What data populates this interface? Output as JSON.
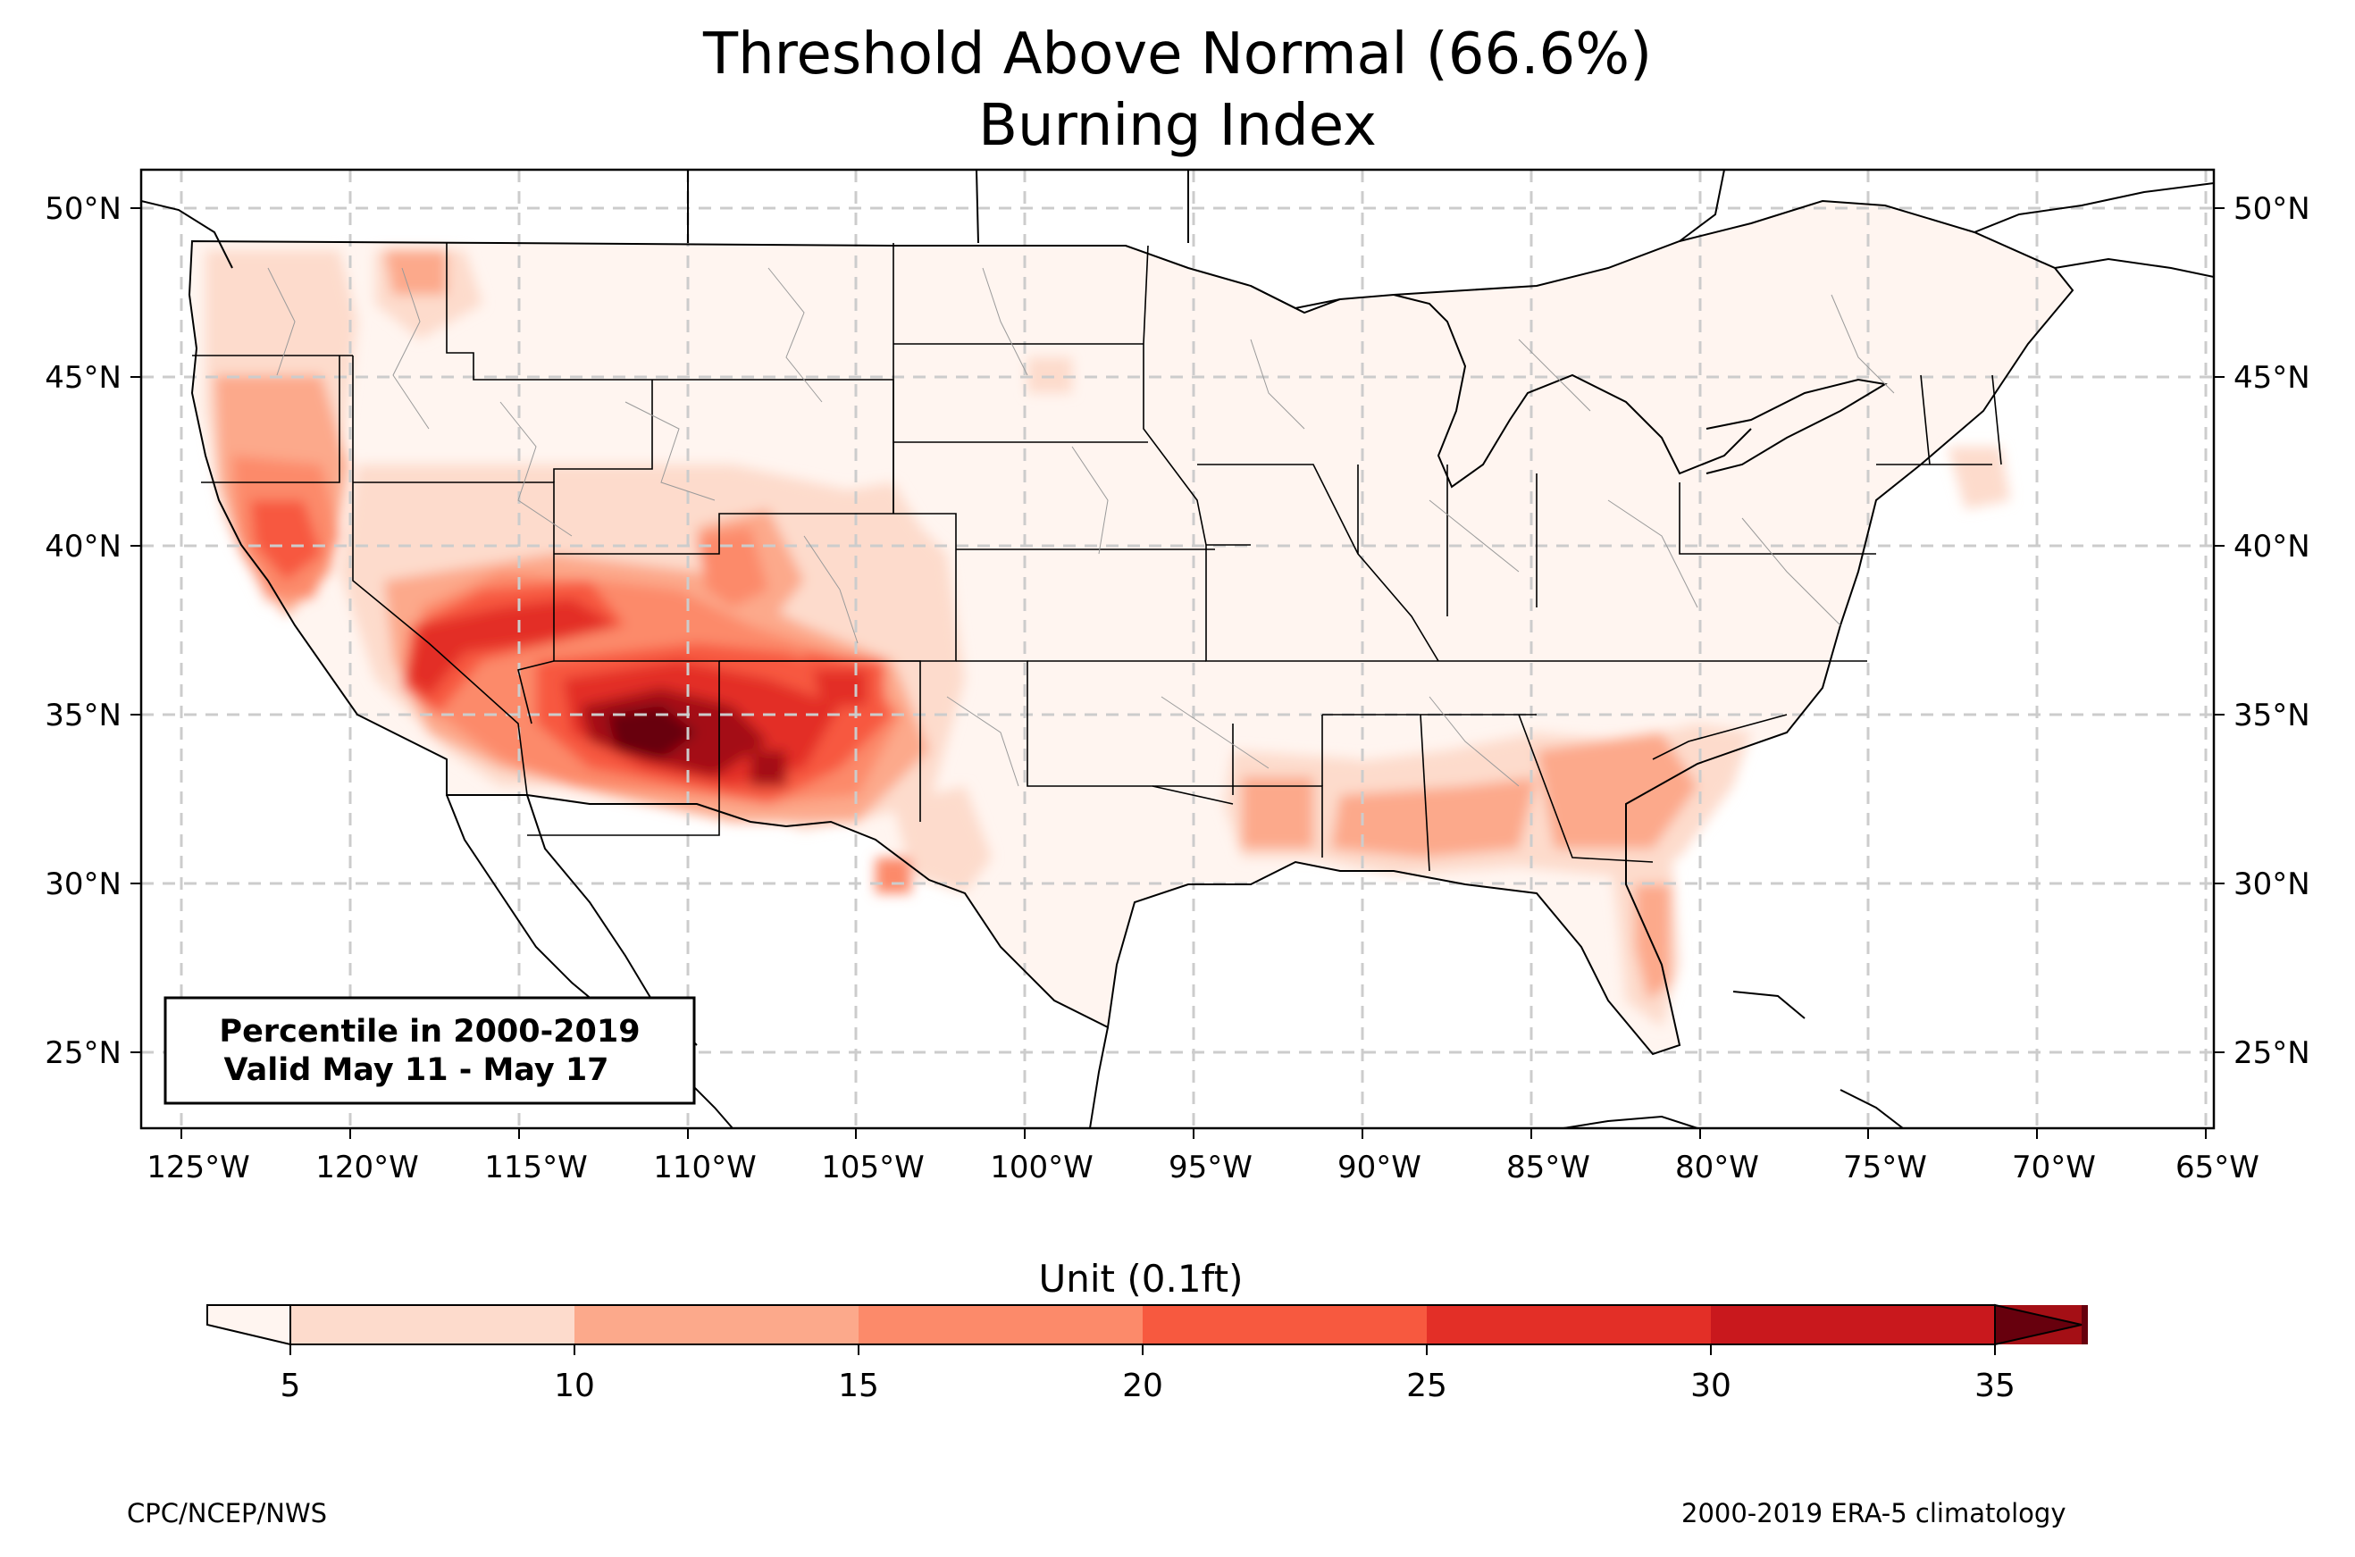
{
  "title": "Threshold Above Normal (66.6%)",
  "subtitle": "Burning Index",
  "map": {
    "lon_labels": [
      "125°W",
      "120°W",
      "115°W",
      "110°W",
      "105°W",
      "100°W",
      "95°W",
      "90°W",
      "85°W",
      "80°W",
      "75°W",
      "70°W",
      "65°W"
    ],
    "lat_labels": [
      "50°N",
      "45°N",
      "40°N",
      "35°N",
      "30°N",
      "25°N"
    ],
    "lon_range": [
      -126.2,
      -64.8
    ],
    "lat_range": [
      22.8,
      51.2
    ]
  },
  "info_box": {
    "line1": "Percentile in 2000-2019",
    "line2": "Valid May 11 - May 17"
  },
  "colorbar": {
    "label": "Unit (0.1ft)",
    "ticks": [
      "5",
      "10",
      "15",
      "20",
      "25",
      "30",
      "35"
    ],
    "colors": [
      "#fddbcc",
      "#fca98b",
      "#fc8a6a",
      "#f7593f",
      "#e32f27",
      "#c9181d",
      "#a40f15"
    ],
    "under_color": "#fff5f0",
    "over_color": "#67000d"
  },
  "footer": {
    "left": "CPC/NCEP/NWS",
    "right": "2000-2019 ERA-5 climatology"
  }
}
